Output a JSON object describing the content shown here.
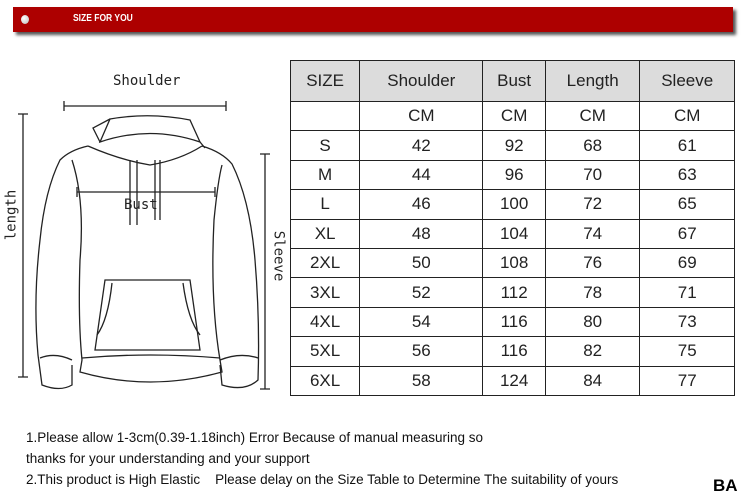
{
  "banner": {
    "title": "SIZE FOR YOU",
    "color": "#ad0000"
  },
  "diagram": {
    "shoulder": "Shoulder",
    "bust": "Bust",
    "length": "length",
    "sleeve": "Sleeve"
  },
  "table": {
    "headers": [
      "SIZE",
      "Shoulder",
      "Bust",
      "Length",
      "Sleeve"
    ],
    "units": [
      "",
      "CM",
      "CM",
      "CM",
      "CM"
    ],
    "rows": [
      [
        "S",
        "42",
        "92",
        "68",
        "61"
      ],
      [
        "M",
        "44",
        "96",
        "70",
        "63"
      ],
      [
        "L",
        "46",
        "100",
        "72",
        "65"
      ],
      [
        "XL",
        "48",
        "104",
        "74",
        "67"
      ],
      [
        "2XL",
        "50",
        "108",
        "76",
        "69"
      ],
      [
        "3XL",
        "52",
        "112",
        "78",
        "71"
      ],
      [
        "4XL",
        "54",
        "116",
        "80",
        "73"
      ],
      [
        "5XL",
        "56",
        "116",
        "82",
        "75"
      ],
      [
        "6XL",
        "58",
        "124",
        "84",
        "77"
      ]
    ]
  },
  "notes": [
    "1.Please allow 1-3cm(0.39-1.18inch) Error Because of manual measuring so",
    "thanks for your understanding and your support",
    "2.This product is High Elastic    Please delay on the Size Table to Determine The suitability of yours"
  ],
  "brand": "BA"
}
